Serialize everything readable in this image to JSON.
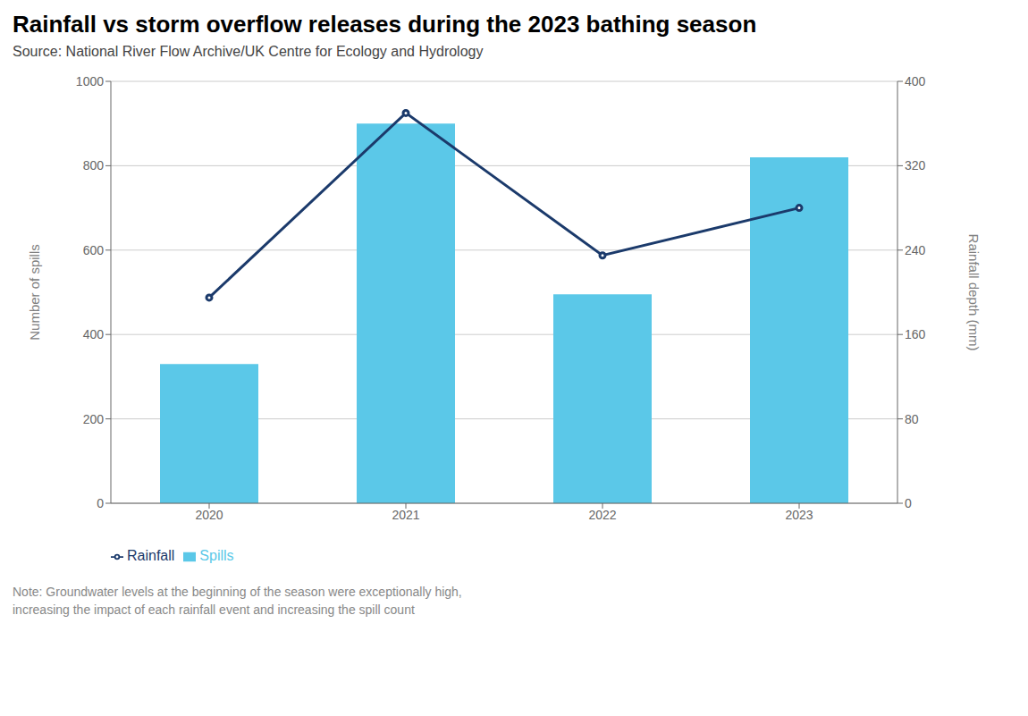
{
  "chart_data": {
    "type": "bar",
    "title": "Rainfall vs storm overflow releases during the 2023 bathing season",
    "subtitle": "Source: National River Flow Archive/UK Centre for Ecology and Hydrology",
    "annotations": [
      "Note: Groundwater levels at the beginning of the season were exceptionally high,\nincreasing the impact of each rainfall event and increasing the spill count"
    ],
    "categories": [
      "2020",
      "2021",
      "2022",
      "2023"
    ],
    "series": [
      {
        "name": "Spills",
        "type": "bar",
        "color": "#5BC8E8",
        "values": [
          330,
          900,
          495,
          820
        ]
      },
      {
        "name": "Rainfall",
        "type": "line",
        "axis": "y2",
        "color": "#1B3A6B",
        "values": [
          195,
          370,
          235,
          280
        ]
      }
    ],
    "ylabel": "Number of spills",
    "y2label": "Rainfall depth (mm)",
    "ylim": [
      0,
      1000
    ],
    "yticks": [
      0,
      200,
      400,
      600,
      800,
      1000
    ],
    "y2lim": [
      0,
      400
    ],
    "y2ticks": [
      0,
      80,
      160,
      240,
      320,
      400
    ],
    "grid": true,
    "legend": "bottom"
  }
}
